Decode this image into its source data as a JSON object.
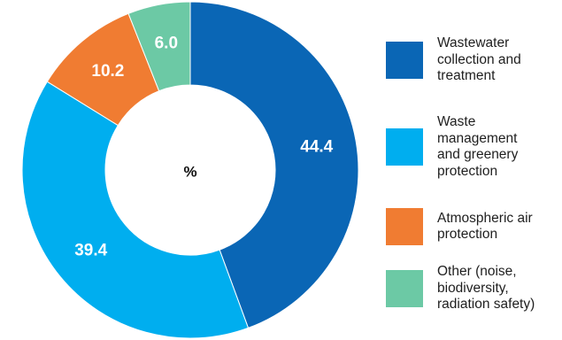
{
  "chart_data": {
    "type": "pie",
    "center_label": "%",
    "legend_position": "right",
    "series": [
      {
        "name": "Wastewater\ncollection and\ntreatment",
        "value": 44.4,
        "label": "44.4",
        "color": "#0a66b5"
      },
      {
        "name": "Waste\nmanagement\nand greenery\nprotection",
        "value": 39.4,
        "label": "39.4",
        "color": "#00aeef"
      },
      {
        "name": "Atmospheric air\nprotection",
        "value": 10.2,
        "label": "10.2",
        "color": "#f07c32"
      },
      {
        "name": "Other (noise,\nbiodiversity,\nradiation safety)",
        "value": 6.0,
        "label": "6.0",
        "color": "#6cc9a5"
      }
    ]
  }
}
